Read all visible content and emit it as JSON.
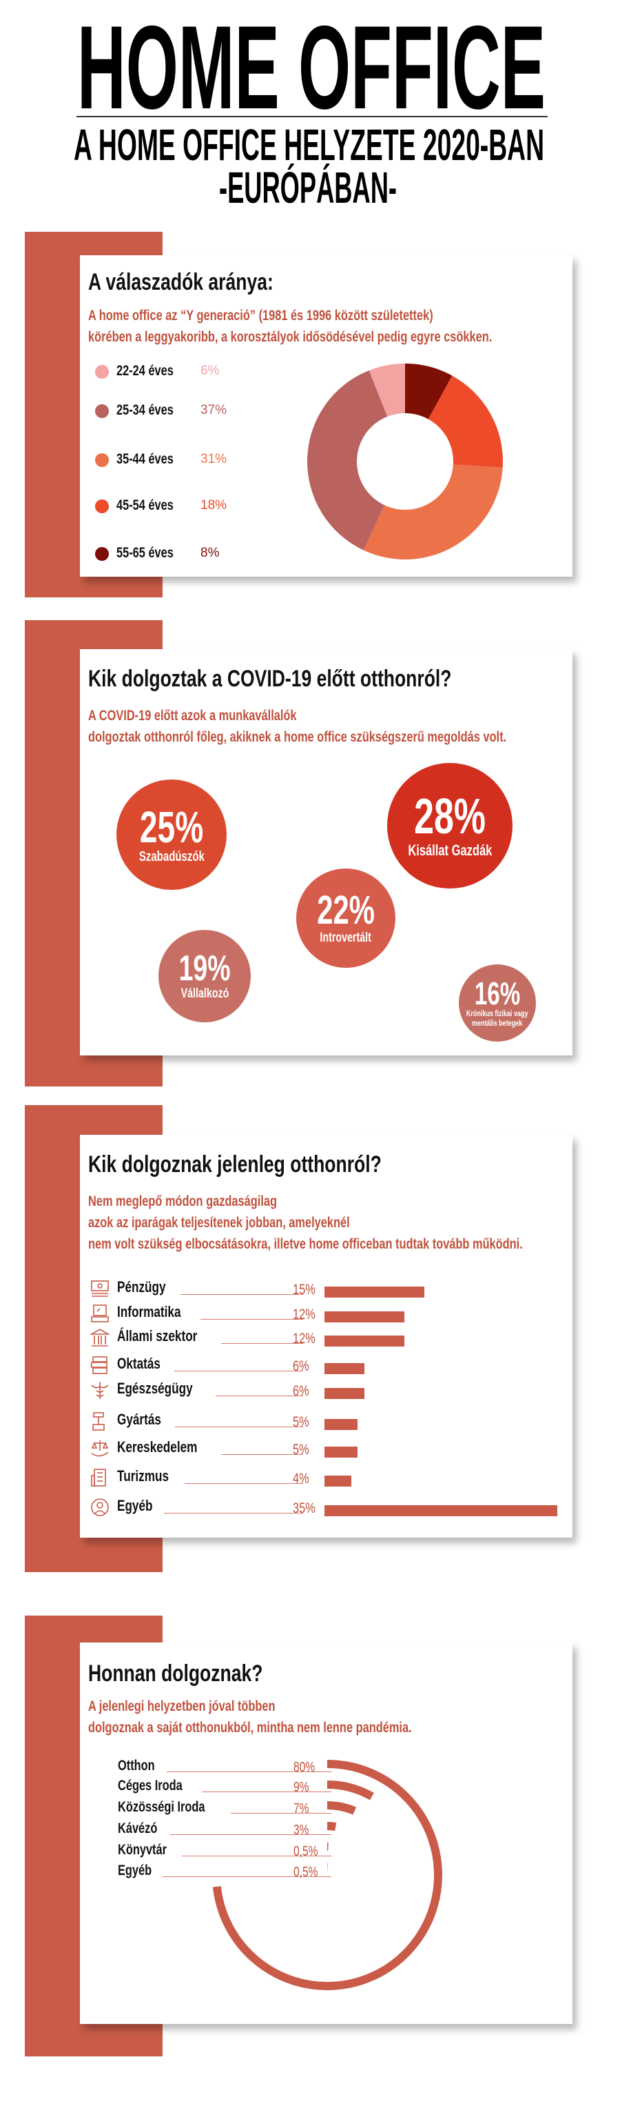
{
  "header": {
    "title": "HOME OFFICE",
    "subtitle": "A HOME OFFICE HELYZETE 2020-BAN",
    "subtitle2": "-EURÓPÁBAN-"
  },
  "colors": {
    "accent": "#C95B48",
    "text_accent": "#C0513D"
  },
  "respondents": {
    "title": "A válaszadók aránya:",
    "desc": [
      "A home office az “Y generació” (1981 és 1996 között születettek)",
      "körében a leggyakoribb, a korosztályok idősödésével pedig egyre csökken."
    ],
    "chart_data": {
      "type": "pie",
      "donut": true,
      "categories": [
        "22-24 éves",
        "25-34 éves",
        "35-44 éves",
        "45-54 éves",
        "55-65 éves"
      ],
      "values": [
        6,
        37,
        31,
        18,
        8
      ],
      "labels": [
        "6%",
        "37%",
        "31%",
        "18%",
        "8%"
      ],
      "colors": [
        "#F4A3A3",
        "#B9625E",
        "#EC7249",
        "#EE4B2B",
        "#7E0F05"
      ]
    }
  },
  "before": {
    "title": "Kik dolgoztak a COVID-19 előtt otthonról?",
    "desc": [
      "A COVID-19 előtt azok a munkavállalók",
      "dolgoztak otthonról főleg, akiknek a home office szükségszerű megoldás volt."
    ],
    "bubbles": [
      {
        "pct": "25%",
        "label": "Szabadúszók",
        "color": "#DB4A2E"
      },
      {
        "pct": "28%",
        "label": "Kisállat Gazdák",
        "color": "#D22F1F"
      },
      {
        "pct": "22%",
        "label": "Introvertált",
        "color": "#D65C4B"
      },
      {
        "pct": "19%",
        "label": "Vállalkozó",
        "color": "#C76F64"
      },
      {
        "pct": "16%",
        "label": "Krónikus fizikai vagy",
        "label2": "mentális betegek",
        "color": "#C46E63"
      }
    ]
  },
  "now": {
    "title": "Kik dolgoznak jelenleg otthonról?",
    "desc": [
      "Nem meglepő módon gazdaságilag",
      "azok az iparágak teljesítenek jobban, amelyeknél",
      "nem volt szükség elbocsátásokra, illetve home officeban tudtak tovább működni."
    ],
    "chart_data": {
      "type": "bar",
      "orientation": "horizontal",
      "categories": [
        "Pénzügy",
        "Informatika",
        "Állami szektor",
        "Oktatás",
        "Egészségügy",
        "Gyártás",
        "Kereskedelem",
        "Turizmus",
        "Egyéb"
      ],
      "values": [
        15,
        12,
        12,
        6,
        6,
        5,
        5,
        4,
        35
      ],
      "labels": [
        "15%",
        "12%",
        "12%",
        "6%",
        "6%",
        "5%",
        "5%",
        "4%",
        "35%"
      ],
      "icons": [
        "money-icon",
        "computer-icon",
        "government-building-icon",
        "books-icon",
        "caduceus-icon",
        "hammer-icon",
        "scales-hand-icon",
        "hotel-building-icon",
        "person-icon"
      ]
    }
  },
  "where": {
    "title": "Honnan dolgoznak?",
    "desc": [
      "A jelenlegi helyzetben jóval többen",
      "dolgoznak a saját otthonukból, mintha nem lenne pandémia."
    ],
    "chart_data": {
      "type": "radial-bar",
      "categories": [
        "Otthon",
        "Céges Iroda",
        "Közösségi Iroda",
        "Kávézó",
        "Könyvtár",
        "Egyéb"
      ],
      "values": [
        80,
        9,
        7,
        3,
        0.5,
        0.5
      ],
      "labels": [
        "80%",
        "9%",
        "7%",
        "3%",
        "0,5%",
        "0,5%"
      ]
    }
  }
}
